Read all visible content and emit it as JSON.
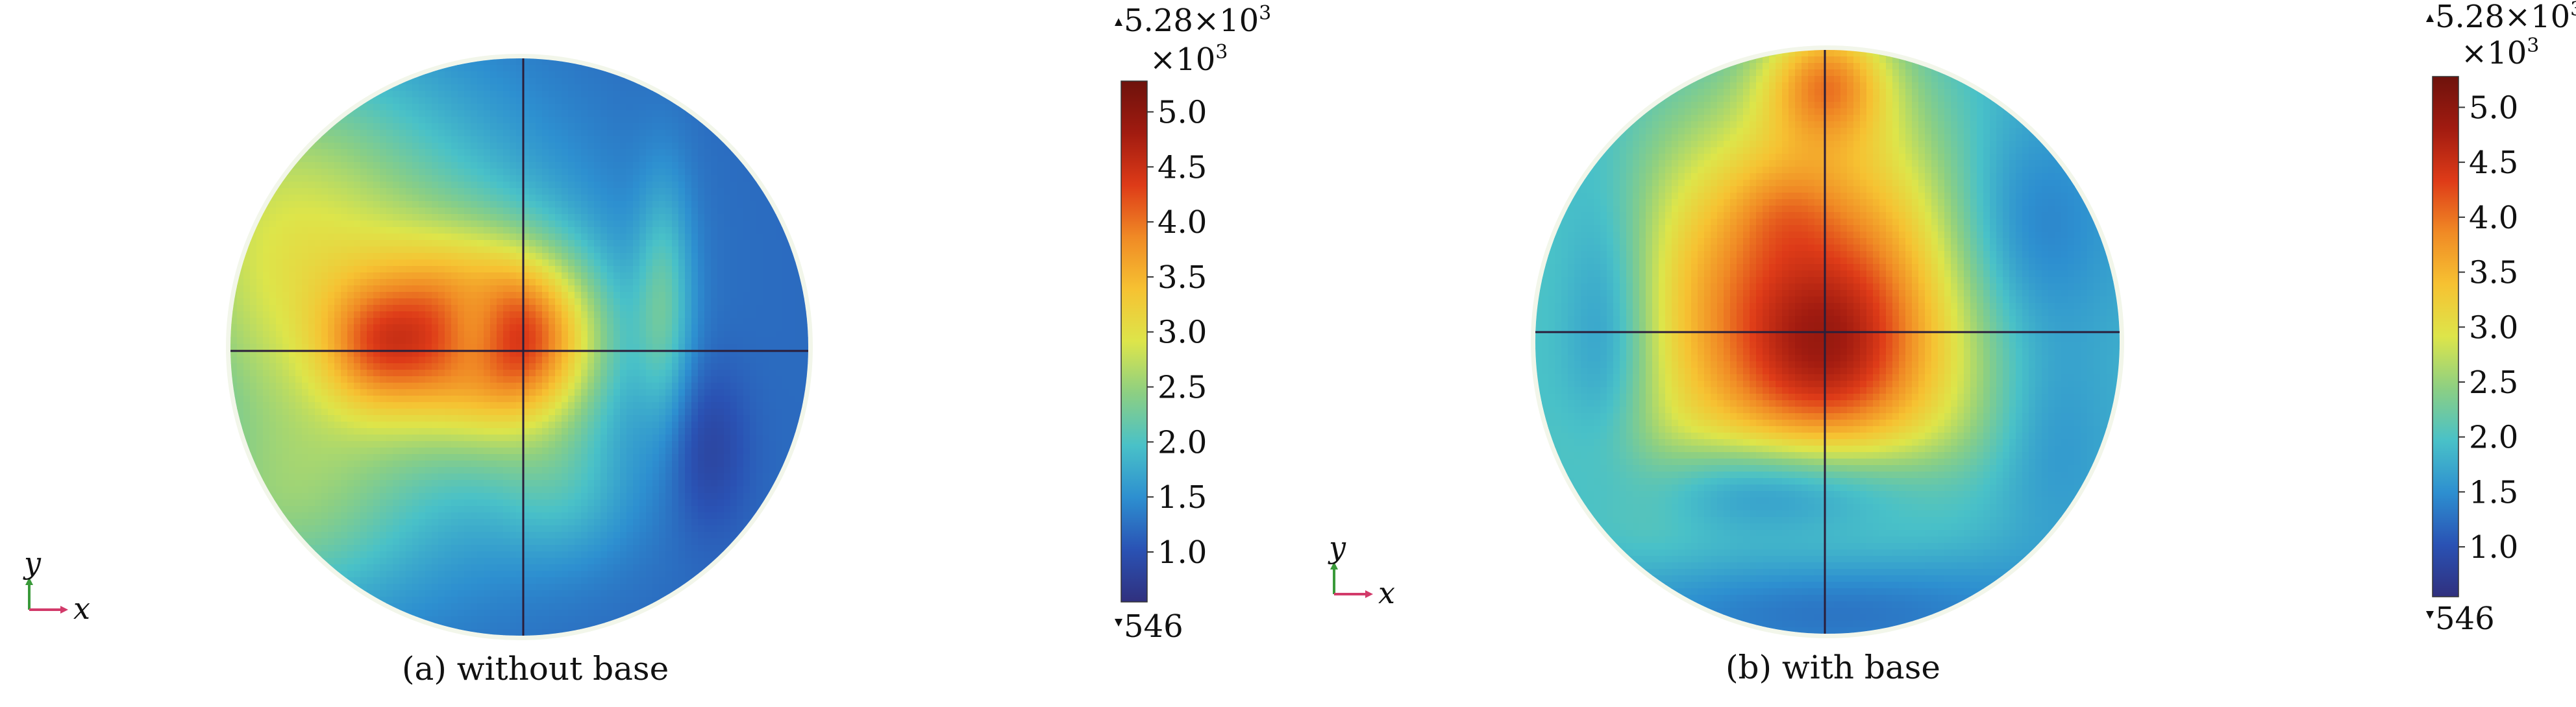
{
  "chart_data": [
    {
      "type": "heatmap",
      "subtype": "circular-contour",
      "caption": "(a) without base",
      "axes_indicator": {
        "vertical": "y",
        "horizontal": "x"
      },
      "colorbar": {
        "max_label": "5.28×10",
        "max_label_exp": "3",
        "multiplier": "×10",
        "multiplier_exp": "3",
        "ticks": [
          "5.0",
          "4.5",
          "4.0",
          "3.5",
          "3.0",
          "2.5",
          "2.0",
          "1.5",
          "1.0"
        ],
        "tick_values": [
          5.0,
          4.5,
          4.0,
          3.5,
          3.0,
          2.5,
          2.0,
          1.5,
          1.0
        ],
        "min_label": "546",
        "range": [
          546,
          5280
        ],
        "colormap": "jet",
        "colors": [
          "#30307e",
          "#2a52b4",
          "#2d8fd0",
          "#49c1c8",
          "#8ccf83",
          "#dde54a",
          "#f6c232",
          "#f08a25",
          "#de3b18",
          "#a11b10",
          "#6e120c"
        ]
      },
      "field": {
        "background_value": 1.2,
        "blobs": [
          {
            "x": -0.55,
            "y": 0.1,
            "sx": 0.5,
            "sy": 0.55,
            "a": 1.3
          },
          {
            "x": -0.25,
            "y": 0.05,
            "sx": 0.22,
            "sy": 0.22,
            "a": 1.3
          },
          {
            "x": 0.02,
            "y": 0.02,
            "sx": 0.2,
            "sy": 0.22,
            "a": 2.0
          },
          {
            "x": -0.5,
            "y": 0.0,
            "sx": 0.13,
            "sy": 0.15,
            "a": 0.9
          },
          {
            "x": 0.5,
            "y": 0.15,
            "sx": 0.07,
            "sy": 0.3,
            "a": 0.8
          },
          {
            "x": -0.9,
            "y": 0.5,
            "sx": 0.35,
            "sy": 0.45,
            "a": 0.8
          },
          {
            "x": -0.85,
            "y": -0.6,
            "sx": 0.3,
            "sy": 0.25,
            "a": 0.7
          },
          {
            "x": 0.15,
            "y": -0.5,
            "sx": 0.18,
            "sy": 0.18,
            "a": 0.5
          },
          {
            "x": 0.65,
            "y": -0.35,
            "sx": 0.1,
            "sy": 0.2,
            "a": -0.4
          },
          {
            "x": -0.15,
            "y": 0.05,
            "sx": 0.09,
            "sy": 0.13,
            "a": -0.9
          }
        ]
      }
    },
    {
      "type": "heatmap",
      "subtype": "circular-contour",
      "caption": "(b) with base",
      "axes_indicator": {
        "vertical": "y",
        "horizontal": "x"
      },
      "colorbar": {
        "max_label": "5.28×10",
        "max_label_exp": "3",
        "multiplier": "×10",
        "multiplier_exp": "3",
        "ticks": [
          "5.0",
          "4.5",
          "4.0",
          "3.5",
          "3.0",
          "2.5",
          "2.0",
          "1.5",
          "1.0"
        ],
        "tick_values": [
          5.0,
          4.5,
          4.0,
          3.5,
          3.0,
          2.5,
          2.0,
          1.5,
          1.0
        ],
        "min_label": "546",
        "range": [
          546,
          5280
        ],
        "colormap": "jet",
        "colors": [
          "#30307e",
          "#2a52b4",
          "#2d8fd0",
          "#49c1c8",
          "#8ccf83",
          "#dde54a",
          "#f6c232",
          "#f08a25",
          "#de3b18",
          "#a11b10",
          "#6e120c"
        ]
      },
      "field": {
        "background_value": 1.7,
        "blobs": [
          {
            "x": -0.05,
            "y": 0.12,
            "sx": 0.48,
            "sy": 0.5,
            "a": 2.6
          },
          {
            "x": 0.0,
            "y": -0.05,
            "sx": 0.2,
            "sy": 0.2,
            "a": 0.7
          },
          {
            "x": -0.15,
            "y": 0.45,
            "sx": 0.12,
            "sy": 0.12,
            "a": 0.3
          },
          {
            "x": 0.0,
            "y": 0.9,
            "sx": 0.15,
            "sy": 0.15,
            "a": 1.5
          },
          {
            "x": -0.75,
            "y": 0.05,
            "sx": 0.12,
            "sy": 0.35,
            "a": -0.8
          },
          {
            "x": 0.65,
            "y": 0.35,
            "sx": 0.22,
            "sy": 0.3,
            "a": -0.9
          },
          {
            "x": -0.15,
            "y": -0.5,
            "sx": 0.35,
            "sy": 0.12,
            "a": -1.1
          },
          {
            "x": 0.0,
            "y": -0.9,
            "sx": 0.5,
            "sy": 0.15,
            "a": -0.7
          },
          {
            "x": 0.75,
            "y": -0.3,
            "sx": 0.15,
            "sy": 0.25,
            "a": -0.4
          },
          {
            "x": -0.7,
            "y": -0.5,
            "sx": 0.2,
            "sy": 0.2,
            "a": 0.4
          }
        ]
      }
    }
  ]
}
